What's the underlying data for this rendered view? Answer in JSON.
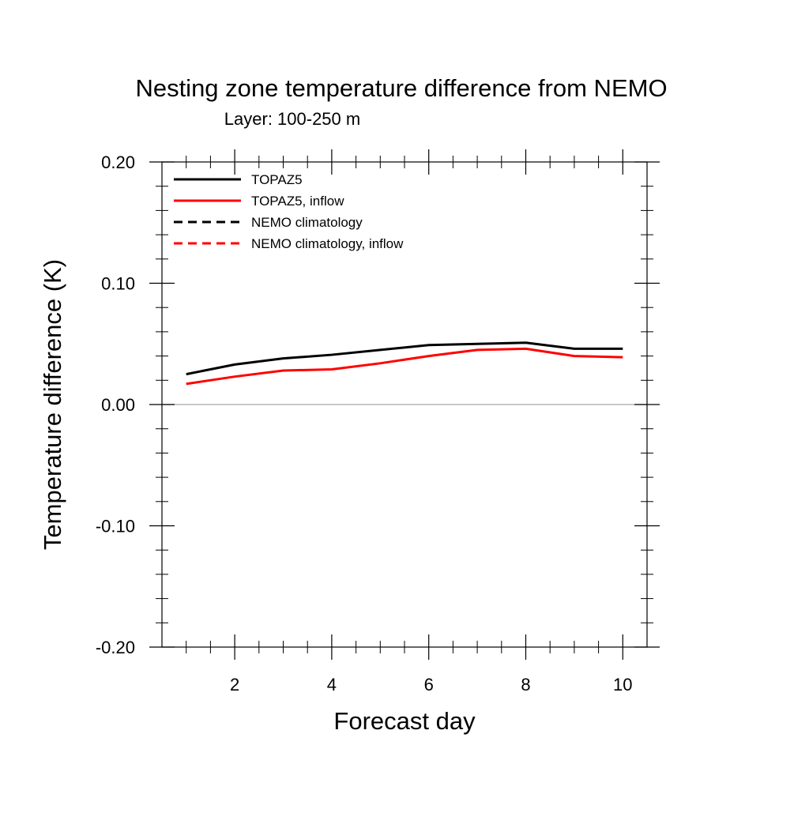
{
  "chart_data": {
    "type": "line",
    "title": "Nesting zone temperature difference from NEMO",
    "subtitle": "Layer: 100-250 m",
    "xlabel": "Forecast day",
    "ylabel": "Temperature difference (K)",
    "xlim": [
      0.5,
      10.5
    ],
    "ylim": [
      -0.2,
      0.2
    ],
    "x_ticks": [
      2,
      4,
      6,
      8,
      10
    ],
    "x_tick_labels": [
      "2",
      "4",
      "6",
      "8",
      "10"
    ],
    "y_ticks": [
      -0.2,
      -0.1,
      0.0,
      0.1,
      0.2
    ],
    "y_tick_labels": [
      "-0.20",
      "-0.10",
      "0.00",
      "0.10",
      "0.20"
    ],
    "x_minor_step": 0.5,
    "y_minor_step": 0.02,
    "zero_line": true,
    "grid": false,
    "legend_position": "top-left",
    "series": [
      {
        "name": "TOPAZ5",
        "color": "#000000",
        "dash": "solid",
        "x": [
          1,
          2,
          3,
          4,
          5,
          6,
          7,
          8,
          9,
          10
        ],
        "values": [
          0.025,
          0.033,
          0.038,
          0.041,
          0.045,
          0.049,
          0.05,
          0.051,
          0.046,
          0.046
        ]
      },
      {
        "name": "TOPAZ5, inflow",
        "color": "#ff0000",
        "dash": "solid",
        "x": [
          1,
          2,
          3,
          4,
          5,
          6,
          7,
          8,
          9,
          10
        ],
        "values": [
          0.017,
          0.023,
          0.028,
          0.029,
          0.034,
          0.04,
          0.045,
          0.046,
          0.04,
          0.039
        ]
      },
      {
        "name": "NEMO climatology",
        "color": "#000000",
        "dash": "dashed",
        "x": [],
        "values": []
      },
      {
        "name": "NEMO climatology, inflow",
        "color": "#ff0000",
        "dash": "dashed",
        "x": [],
        "values": []
      }
    ]
  }
}
